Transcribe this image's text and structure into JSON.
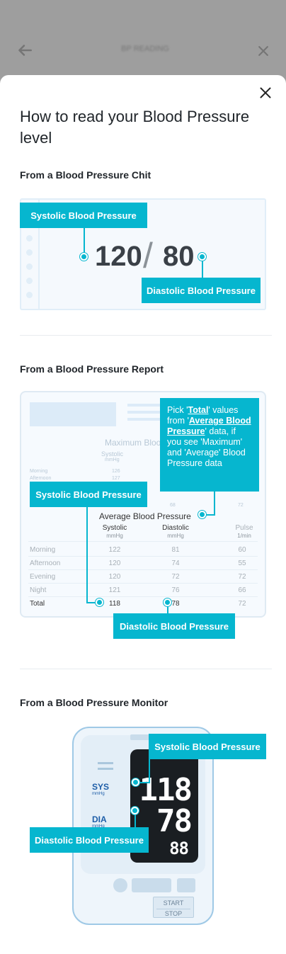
{
  "background": {
    "app_title": "BP READING"
  },
  "sheet": {
    "title": "How to read your Blood Pressure level",
    "close_icon": "close-icon"
  },
  "chit_section": {
    "title": "From a Blood Pressure Chit",
    "systolic_value": "120",
    "slash": "/",
    "diastolic_value": "80",
    "systolic_label": "Systolic Blood Pressure",
    "diastolic_label": "Diastolic Blood Pressure"
  },
  "report_section": {
    "title": "From a Blood Pressure Report",
    "faint_title": "Maximum Blood P",
    "faint_col": "Systolic",
    "faint_unit": "mmHg",
    "faint_rows": [
      "Morning",
      "Afternoon"
    ],
    "faint_vals": [
      "126",
      "127"
    ],
    "faint_extra": [
      "68",
      "72"
    ],
    "avg_title": "Average Blood Pressure",
    "columns": [
      {
        "name": "Systolic",
        "unit": "mmHg"
      },
      {
        "name": "Diastolic",
        "unit": "mmHg"
      },
      {
        "name": "Pulse",
        "unit": "1/min"
      }
    ],
    "rows": [
      {
        "label": "Morning",
        "values": [
          "122",
          "81",
          "60"
        ]
      },
      {
        "label": "Afternoon",
        "values": [
          "120",
          "74",
          "55"
        ]
      },
      {
        "label": "Evening",
        "values": [
          "120",
          "72",
          "72"
        ]
      },
      {
        "label": "Night",
        "values": [
          "121",
          "76",
          "66"
        ]
      },
      {
        "label": "Total",
        "values": [
          "118",
          "78",
          "72"
        ]
      }
    ],
    "systolic_label": "Systolic Blood Pressure",
    "diastolic_label": "Diastolic Blood Pressure",
    "tip": {
      "p1": "Pick '",
      "total": "Total",
      "p2": "' values from '",
      "avg": "Average Blood Pressure",
      "p3": "' data",
      "p4": ", if you see 'Maximum' and 'Average' Blood Pressure data"
    }
  },
  "monitor_section": {
    "title": "From a Blood Pressure Monitor",
    "sys_label": "SYS",
    "dia_label": "DIA",
    "unit": "mmHg",
    "sys_value": "118",
    "dia_value": "78",
    "pulse_value": "88",
    "start_label": "START",
    "stop_label": "STOP",
    "systolic_label": "Systolic Blood Pressure",
    "diastolic_label": "Diastolic Blood Pressure"
  },
  "colors": {
    "accent": "#06b6cf",
    "screen": "#1a1e22",
    "monitor_text": "#1e5ea8"
  }
}
